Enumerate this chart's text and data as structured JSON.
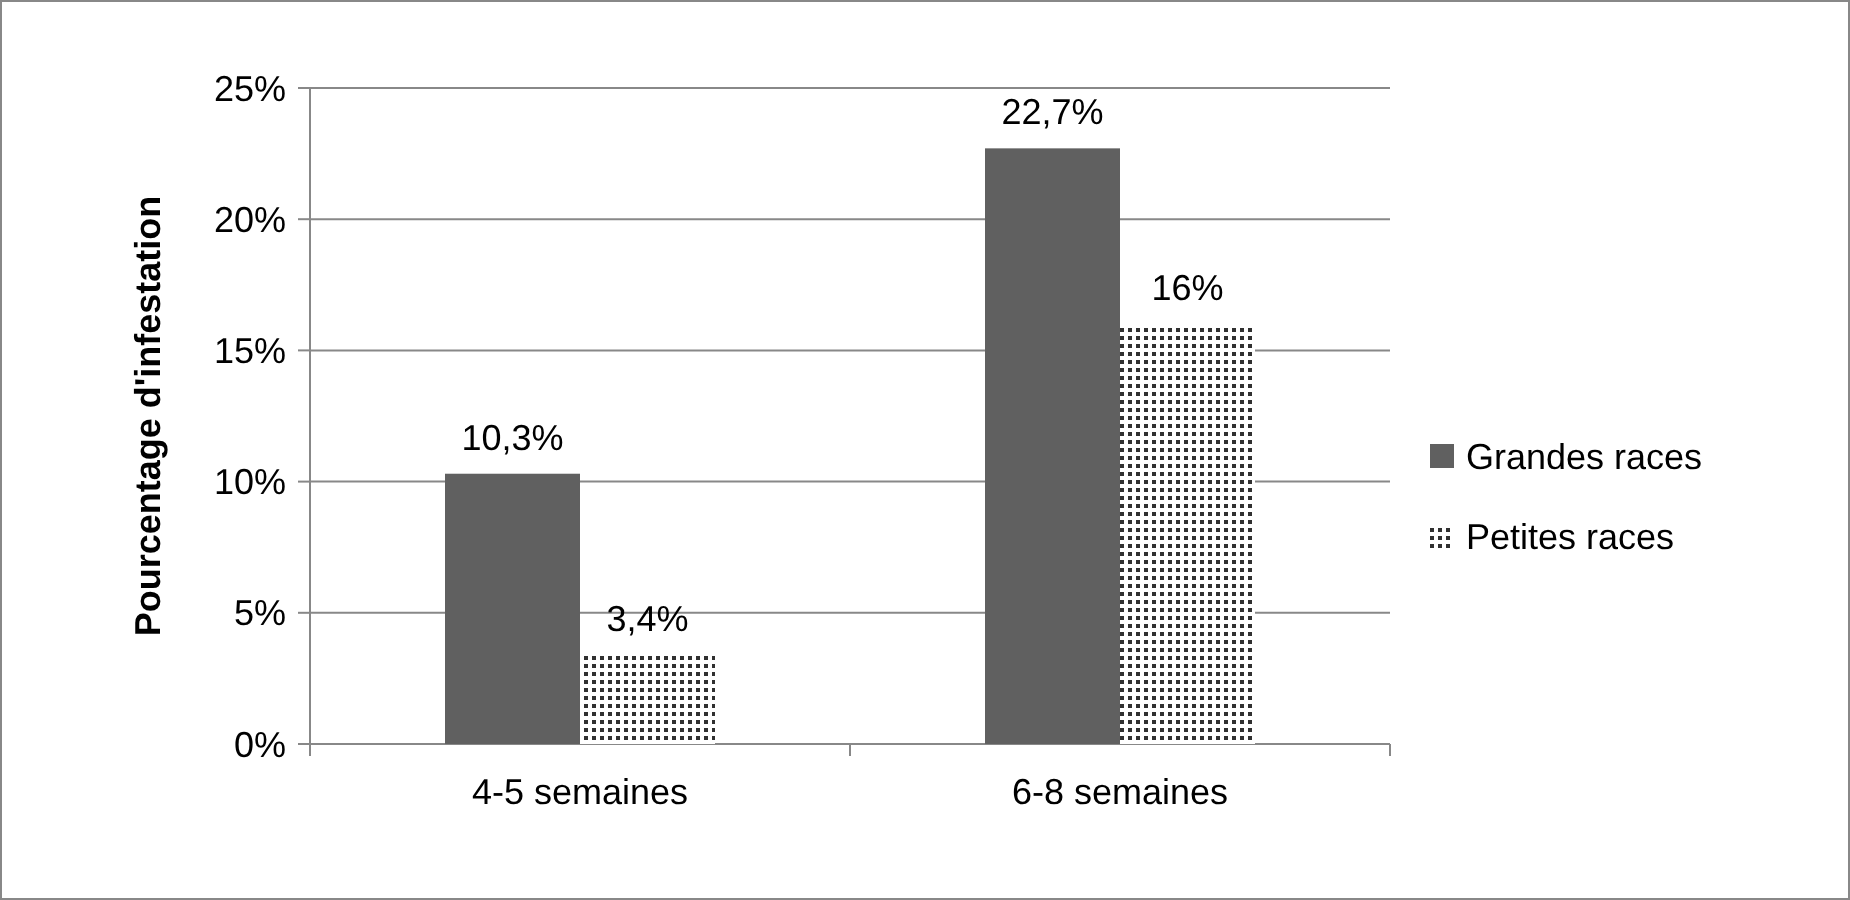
{
  "chart_data": {
    "type": "bar",
    "ylabel": "Pourcentage d'infestation",
    "categories": [
      "4-5 semaines",
      "6-8 semaines"
    ],
    "series": [
      {
        "name": "Grandes races",
        "color": "#606060",
        "values": [
          10.3,
          22.7
        ],
        "value_labels": [
          "10,3%",
          "22,7%"
        ]
      },
      {
        "name": "Petites races",
        "color": "#303030",
        "values": [
          3.4,
          16
        ],
        "value_labels": [
          "3,4%",
          "16%"
        ]
      }
    ],
    "ylim": [
      0,
      25
    ],
    "yticks": [
      {
        "value": 0,
        "label": "0%"
      },
      {
        "value": 5,
        "label": "5%"
      },
      {
        "value": 10,
        "label": "10%"
      },
      {
        "value": 15,
        "label": "15%"
      },
      {
        "value": 20,
        "label": "20%"
      },
      {
        "value": 25,
        "label": "25%"
      }
    ],
    "grid": "y",
    "legend": "right"
  }
}
